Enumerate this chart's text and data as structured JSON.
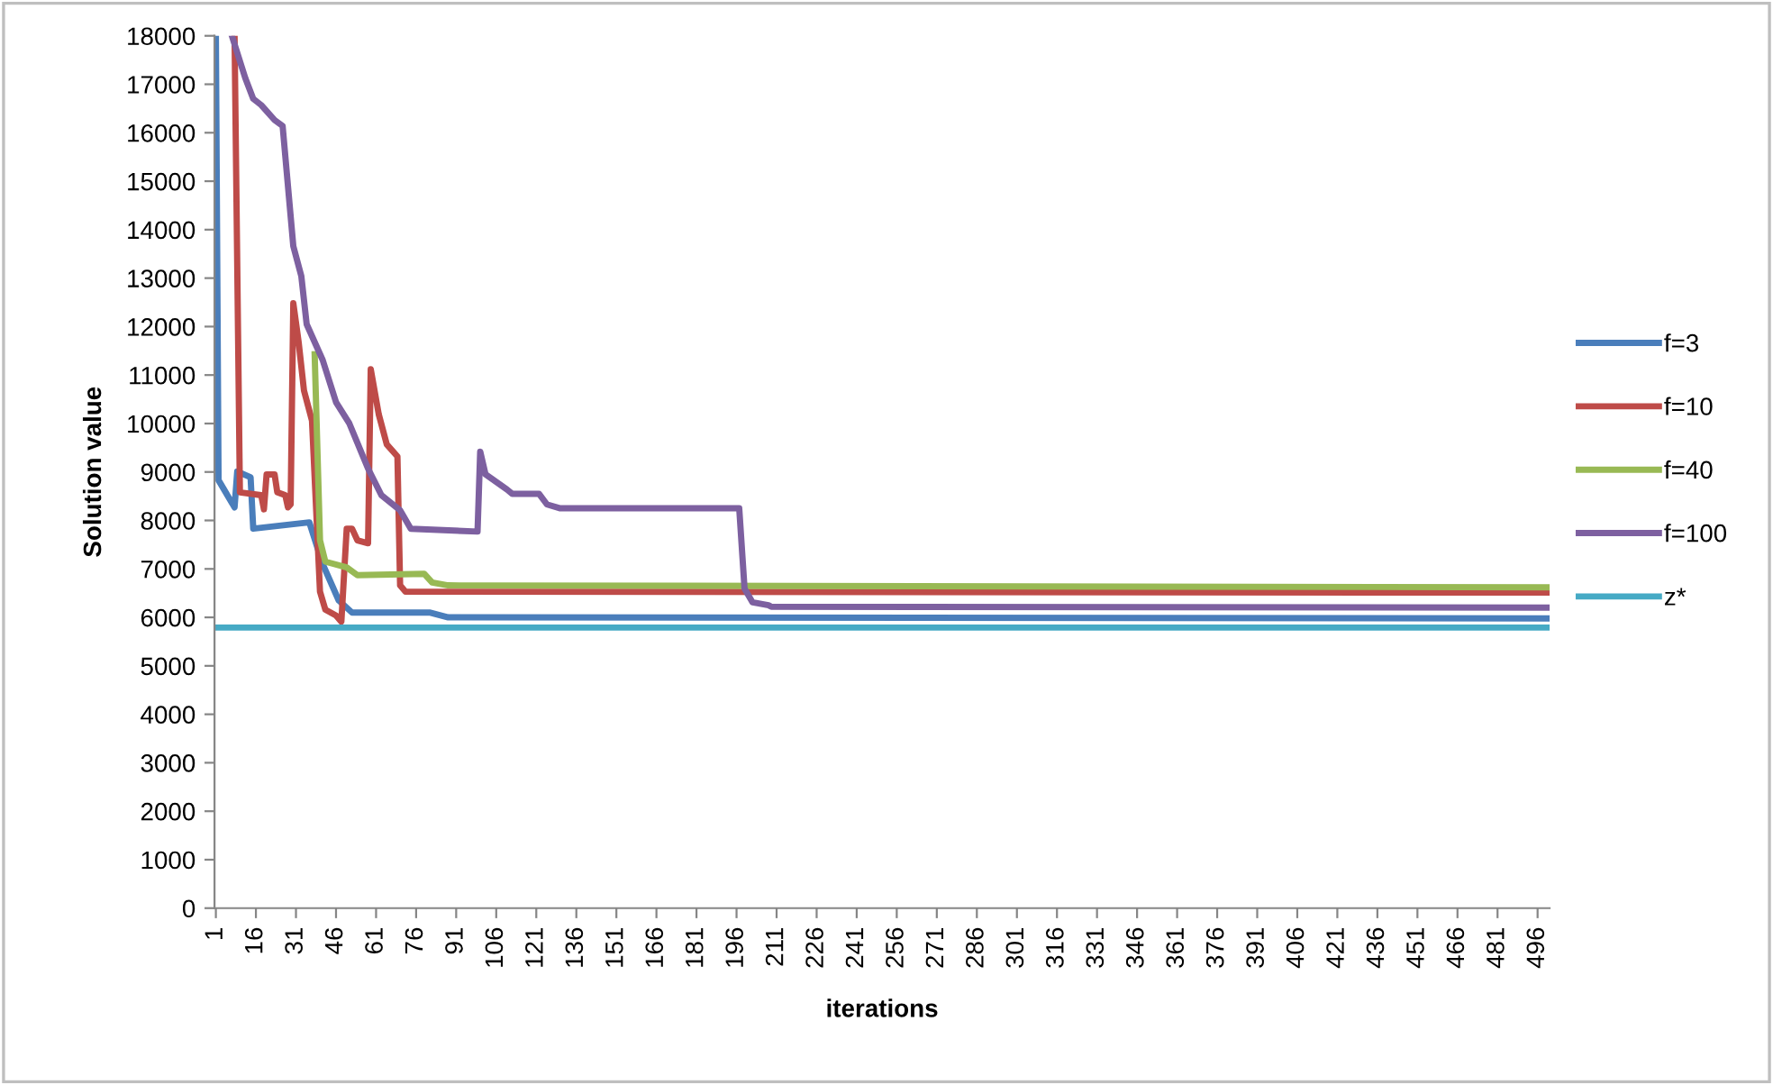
{
  "chart_data": {
    "type": "line",
    "xlabel": "iterations",
    "ylabel": "Solution value",
    "xlim": [
      0.5,
      500.5
    ],
    "xticks": [
      1,
      16,
      31,
      46,
      61,
      76,
      91,
      106,
      121,
      136,
      151,
      166,
      181,
      196,
      211,
      226,
      241,
      256,
      271,
      286,
      301,
      316,
      331,
      346,
      361,
      376,
      391,
      406,
      421,
      436,
      451,
      466,
      481,
      496
    ],
    "ylim": [
      0,
      18000
    ],
    "yticks": [
      0,
      1000,
      2000,
      3000,
      4000,
      5000,
      6000,
      7000,
      8000,
      9000,
      10000,
      11000,
      12000,
      13000,
      14000,
      15000,
      16000,
      17000,
      18000
    ],
    "grid": false,
    "legend": "right",
    "marker": "none",
    "line_style": "solid",
    "series": [
      {
        "name": "f=3",
        "color": "#4a7ebb",
        "x": [
          1,
          2,
          8,
          9,
          14,
          15,
          36,
          41,
          47,
          52,
          81,
          88,
          500
        ],
        "values": [
          18000,
          8830,
          8270,
          9010,
          8890,
          7830,
          7960,
          7100,
          6350,
          6100,
          6100,
          6000,
          5980
        ]
      },
      {
        "name": "f=10",
        "color": "#be4b48",
        "x": [
          8,
          10,
          18,
          19,
          20,
          23,
          24,
          27,
          28,
          29,
          30,
          32,
          34,
          37,
          40,
          42,
          46,
          48,
          50,
          52,
          54,
          58,
          59,
          62,
          65,
          69,
          70,
          72,
          500
        ],
        "values": [
          18000,
          8580,
          8520,
          8230,
          8950,
          8950,
          8580,
          8520,
          8270,
          8330,
          12480,
          11680,
          10680,
          10060,
          6530,
          6160,
          6040,
          5910,
          7830,
          7830,
          7590,
          7530,
          11120,
          10190,
          9570,
          9320,
          6660,
          6530,
          6510
        ]
      },
      {
        "name": "f=40",
        "color": "#98b954",
        "x": [
          38,
          40,
          42,
          50,
          54,
          79,
          82,
          88,
          500
        ],
        "values": [
          11430,
          7590,
          7150,
          7030,
          6870,
          6900,
          6720,
          6660,
          6620
        ]
      },
      {
        "name": "f=100",
        "color": "#7d60a0",
        "x": [
          7,
          12,
          15,
          18,
          23,
          26,
          30,
          33,
          35,
          41,
          46,
          51,
          58,
          63,
          70,
          74,
          99,
          100,
          102,
          110,
          112,
          122,
          125,
          130,
          197,
          199,
          202,
          208,
          209,
          500
        ],
        "values": [
          18000,
          17130,
          16700,
          16570,
          16260,
          16140,
          13660,
          13040,
          12050,
          11310,
          10440,
          10000,
          9070,
          8520,
          8210,
          7830,
          7770,
          9420,
          8950,
          8640,
          8550,
          8550,
          8330,
          8250,
          8250,
          6590,
          6310,
          6250,
          6220,
          6200
        ]
      },
      {
        "name": "z*",
        "color": "#46aac5",
        "x": [
          1,
          500
        ],
        "values": [
          5790,
          5790
        ]
      }
    ]
  }
}
